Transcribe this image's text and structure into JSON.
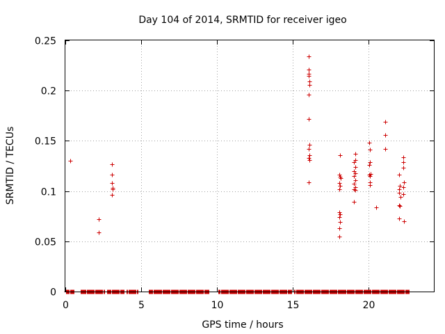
{
  "chart_data": {
    "type": "scatter",
    "title": "Day 104 of 2014, SRMTID for receiver igeo",
    "xlabel": "GPS time / hours",
    "ylabel": "SRMTID / TECUs",
    "xlim": [
      0,
      24.3
    ],
    "ylim": [
      0,
      0.25
    ],
    "xticks": [
      0,
      5,
      10,
      15,
      20
    ],
    "xtick_labels": [
      "0",
      "5",
      "10",
      "15",
      "20"
    ],
    "yticks": [
      0,
      0.05,
      0.1,
      0.15,
      0.2,
      0.25
    ],
    "ytick_labels": [
      "0",
      "0.05",
      "0.1",
      "0.15",
      "0.2",
      "0.25"
    ],
    "grid": true,
    "marker": "+",
    "color": "#cc0000",
    "series": [
      {
        "name": "SRMTID",
        "points": [
          [
            0.3,
            0.13
          ],
          [
            2.2,
            0.072
          ],
          [
            2.2,
            0.059
          ],
          [
            3.05,
            0.127
          ],
          [
            3.05,
            0.116
          ],
          [
            3.05,
            0.108
          ],
          [
            3.1,
            0.103
          ],
          [
            3.1,
            0.102
          ],
          [
            3.05,
            0.096
          ],
          [
            16.05,
            0.234
          ],
          [
            16.05,
            0.221
          ],
          [
            16.05,
            0.217
          ],
          [
            16.05,
            0.215
          ],
          [
            16.1,
            0.209
          ],
          [
            16.1,
            0.206
          ],
          [
            16.05,
            0.196
          ],
          [
            16.05,
            0.172
          ],
          [
            16.1,
            0.146
          ],
          [
            16.05,
            0.142
          ],
          [
            16.1,
            0.136
          ],
          [
            16.05,
            0.133
          ],
          [
            16.1,
            0.131
          ],
          [
            16.05,
            0.109
          ],
          [
            18.1,
            0.136
          ],
          [
            18.05,
            0.116
          ],
          [
            18.1,
            0.114
          ],
          [
            18.15,
            0.113
          ],
          [
            18.05,
            0.108
          ],
          [
            18.1,
            0.105
          ],
          [
            18.05,
            0.102
          ],
          [
            18.05,
            0.079
          ],
          [
            18.1,
            0.077
          ],
          [
            18.05,
            0.074
          ],
          [
            18.1,
            0.069
          ],
          [
            18.05,
            0.063
          ],
          [
            18.05,
            0.055
          ],
          [
            19.1,
            0.137
          ],
          [
            19.1,
            0.131
          ],
          [
            19.05,
            0.129
          ],
          [
            19.1,
            0.124
          ],
          [
            19.05,
            0.12
          ],
          [
            19.1,
            0.118
          ],
          [
            19.05,
            0.115
          ],
          [
            19.1,
            0.111
          ],
          [
            19.05,
            0.107
          ],
          [
            19.1,
            0.104
          ],
          [
            19.05,
            0.102
          ],
          [
            19.1,
            0.101
          ],
          [
            19.05,
            0.089
          ],
          [
            20.05,
            0.148
          ],
          [
            20.1,
            0.141
          ],
          [
            20.1,
            0.129
          ],
          [
            20.05,
            0.126
          ],
          [
            20.15,
            0.117
          ],
          [
            20.05,
            0.116
          ],
          [
            20.1,
            0.115
          ],
          [
            20.1,
            0.109
          ],
          [
            20.1,
            0.106
          ],
          [
            20.5,
            0.084
          ],
          [
            21.1,
            0.169
          ],
          [
            21.1,
            0.156
          ],
          [
            21.1,
            0.142
          ],
          [
            22.0,
            0.116
          ],
          [
            22.05,
            0.105
          ],
          [
            22.0,
            0.102
          ],
          [
            22.0,
            0.098
          ],
          [
            22.1,
            0.094
          ],
          [
            22.0,
            0.086
          ],
          [
            22.05,
            0.085
          ],
          [
            22.0,
            0.073
          ],
          [
            22.3,
            0.134
          ],
          [
            22.3,
            0.129
          ],
          [
            22.3,
            0.123
          ],
          [
            22.35,
            0.109
          ],
          [
            22.3,
            0.104
          ],
          [
            22.3,
            0.097
          ],
          [
            22.35,
            0.07
          ]
        ],
        "zero_segments": [
          [
            0.05,
            0.55
          ],
          [
            1.0,
            2.55
          ],
          [
            2.75,
            3.85
          ],
          [
            4.05,
            4.75
          ],
          [
            5.5,
            9.45
          ],
          [
            10.1,
            14.9
          ],
          [
            15.1,
            22.65
          ]
        ],
        "zero_step": 0.05
      }
    ]
  }
}
